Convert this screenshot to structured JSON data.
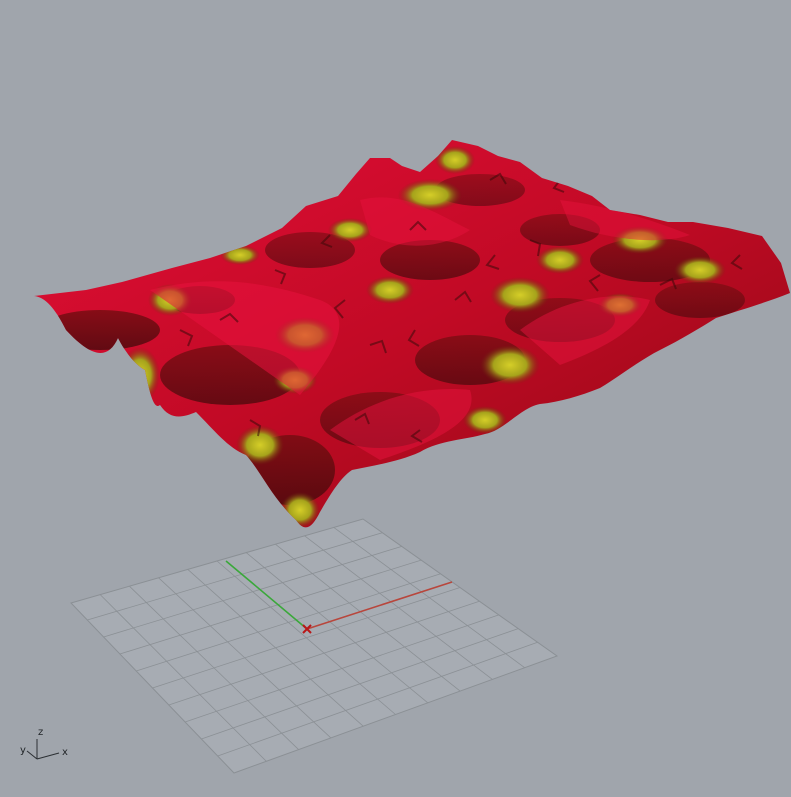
{
  "viewport": {
    "background": "#a0a5ac",
    "surface_colors": {
      "primary": "#cc0a2a",
      "shadow": "#4a0a0a",
      "highlight": "#b8b21e"
    },
    "grid_color": "#8b9095",
    "origin_marker": "#b81818",
    "x_axis_color": "#b8463c",
    "y_axis_color": "#3aa83a"
  },
  "gizmo": {
    "z": "z",
    "y": "y",
    "x": "x"
  }
}
